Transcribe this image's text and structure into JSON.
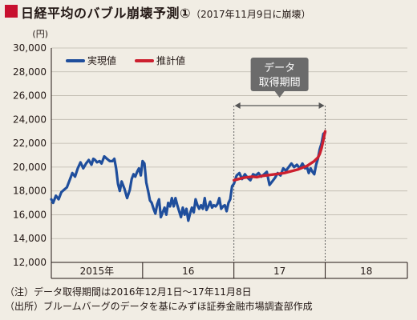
{
  "header": {
    "title": "日経平均のバブル崩壊予測①",
    "subtitle": "（2017年11月9日に崩壊）"
  },
  "notes": {
    "line1": "（注）データ取得期間は2016年12月1日〜17年11月8日",
    "line2": "（出所）ブルームバーグのデータを基にみずほ証券金融市場調査部作成"
  },
  "colors": {
    "actual": "#1f4e9c",
    "estimate": "#cc1f2e",
    "title_accent": "#c8102e",
    "background": "#f1ede4"
  },
  "chart_data": {
    "type": "line",
    "y_unit_label": "(円)",
    "ylim": [
      12000,
      30000
    ],
    "y_ticks": [
      "12,000",
      "14,000",
      "16,000",
      "18,000",
      "20,000",
      "22,000",
      "24,000",
      "26,000",
      "28,000",
      "30,000"
    ],
    "y_tick_values": [
      12000,
      14000,
      16000,
      18000,
      20000,
      22000,
      24000,
      26000,
      28000,
      30000
    ],
    "x_range": [
      0,
      3.9
    ],
    "x_categories": [
      "2015年",
      "16",
      "17",
      "18"
    ],
    "x_category_centers": [
      0.5,
      1.5,
      2.5,
      3.45
    ],
    "grid": true,
    "legend_position": "top-left",
    "annotation": {
      "label_line1": "データ",
      "label_line2": "取得期間",
      "x_start": 2.0,
      "x_end": 3.0
    },
    "series": [
      {
        "name": "実現値",
        "color": "#1f4e9c",
        "x": [
          0.0,
          0.02,
          0.05,
          0.08,
          0.11,
          0.14,
          0.17,
          0.2,
          0.23,
          0.26,
          0.29,
          0.32,
          0.35,
          0.38,
          0.41,
          0.44,
          0.46,
          0.48,
          0.5,
          0.53,
          0.55,
          0.58,
          0.61,
          0.64,
          0.67,
          0.69,
          0.71,
          0.73,
          0.75,
          0.77,
          0.8,
          0.83,
          0.86,
          0.88,
          0.9,
          0.92,
          0.94,
          0.96,
          0.98,
          1.0,
          1.02,
          1.04,
          1.06,
          1.08,
          1.1,
          1.12,
          1.14,
          1.16,
          1.18,
          1.2,
          1.22,
          1.24,
          1.26,
          1.28,
          1.3,
          1.32,
          1.34,
          1.36,
          1.38,
          1.4,
          1.42,
          1.44,
          1.46,
          1.48,
          1.5,
          1.52,
          1.54,
          1.56,
          1.58,
          1.6,
          1.62,
          1.64,
          1.66,
          1.68,
          1.7,
          1.72,
          1.74,
          1.76,
          1.78,
          1.8,
          1.82,
          1.84,
          1.86,
          1.88,
          1.9,
          1.92,
          1.94,
          1.96,
          1.98,
          2.0,
          2.03,
          2.06,
          2.09,
          2.12,
          2.15,
          2.18,
          2.21,
          2.24,
          2.27,
          2.3,
          2.33,
          2.36,
          2.39,
          2.42,
          2.45,
          2.48,
          2.51,
          2.54,
          2.57,
          2.6,
          2.63,
          2.66,
          2.69,
          2.72,
          2.75,
          2.78,
          2.8,
          2.82,
          2.84,
          2.86,
          2.88,
          2.9,
          2.92,
          2.94,
          2.96,
          2.98,
          3.0
        ],
        "y": [
          17300,
          17000,
          17600,
          17300,
          17900,
          18100,
          18300,
          18900,
          19500,
          19200,
          19900,
          20400,
          19900,
          20300,
          20600,
          20200,
          20700,
          20600,
          20400,
          20500,
          20300,
          20900,
          20700,
          20500,
          20500,
          20700,
          19900,
          18600,
          18000,
          18800,
          18200,
          17400,
          18100,
          19000,
          19400,
          19200,
          19600,
          19900,
          19300,
          20500,
          20300,
          18700,
          18000,
          17200,
          17000,
          16500,
          16100,
          16900,
          17300,
          15800,
          16200,
          16600,
          16000,
          17000,
          16700,
          17400,
          16700,
          17400,
          16800,
          16300,
          15800,
          16600,
          16000,
          16500,
          15500,
          16100,
          16600,
          16200,
          17300,
          16800,
          16500,
          16800,
          16500,
          17400,
          16400,
          16700,
          17100,
          16600,
          16800,
          16700,
          16900,
          17400,
          16500,
          16700,
          16800,
          16300,
          17000,
          17300,
          18400,
          18600,
          19300,
          19500,
          19000,
          19400,
          19100,
          18900,
          19400,
          19300,
          19500,
          19200,
          19400,
          19600,
          18500,
          18800,
          19100,
          19500,
          19300,
          19900,
          19700,
          20000,
          20300,
          20000,
          20200,
          19900,
          20300,
          19900,
          20000,
          19500,
          19900,
          19600,
          19400,
          20200,
          20700,
          21500,
          22000,
          22800,
          22900
        ]
      },
      {
        "name": "推計値",
        "color": "#cc1f2e",
        "x": [
          2.0,
          2.05,
          2.1,
          2.15,
          2.2,
          2.25,
          2.3,
          2.35,
          2.4,
          2.45,
          2.5,
          2.55,
          2.6,
          2.65,
          2.7,
          2.75,
          2.8,
          2.84,
          2.88,
          2.92,
          2.94,
          2.96,
          2.98,
          3.0
        ],
        "y": [
          18900,
          19000,
          19100,
          19150,
          19200,
          19150,
          19250,
          19300,
          19350,
          19400,
          19450,
          19500,
          19600,
          19700,
          19800,
          19950,
          20100,
          20300,
          20500,
          20800,
          21100,
          21600,
          22300,
          23000
        ]
      }
    ]
  }
}
